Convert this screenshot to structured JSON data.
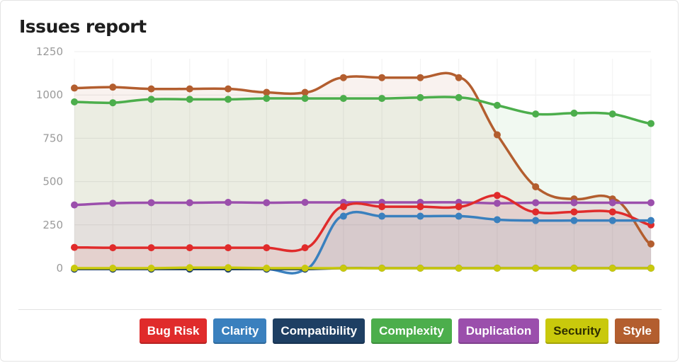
{
  "card": {
    "title": "Issues report"
  },
  "chart_data": {
    "type": "area",
    "title": "Issues report",
    "xlabel": "",
    "ylabel": "",
    "ylim": [
      0,
      1250
    ],
    "yticks": [
      "0",
      "250",
      "500",
      "750",
      "1000",
      "1250"
    ],
    "ytick_values": [
      0,
      250,
      500,
      750,
      1000,
      1250
    ],
    "grid": true,
    "legend_position": "bottom-right",
    "x": [
      1,
      2,
      3,
      4,
      5,
      6,
      7,
      8,
      9,
      10,
      11,
      12,
      13,
      14,
      15,
      16
    ],
    "series": [
      {
        "name": "Style",
        "color": "#b35e2f",
        "values": [
          1040,
          1045,
          1035,
          1035,
          1035,
          1015,
          1015,
          1100,
          1100,
          1100,
          1100,
          770,
          470,
          400,
          400,
          140
        ]
      },
      {
        "name": "Complexity",
        "color": "#4cae4c",
        "values": [
          960,
          955,
          975,
          975,
          975,
          980,
          980,
          980,
          980,
          985,
          985,
          940,
          890,
          895,
          890,
          835
        ]
      },
      {
        "name": "Duplication",
        "color": "#9b4fac",
        "values": [
          365,
          375,
          378,
          378,
          380,
          378,
          380,
          380,
          380,
          380,
          380,
          375,
          378,
          378,
          378,
          378
        ]
      },
      {
        "name": "Bug Risk",
        "color": "#e02b2b",
        "values": [
          120,
          118,
          118,
          118,
          118,
          118,
          118,
          355,
          355,
          355,
          355,
          420,
          325,
          325,
          325,
          250
        ]
      },
      {
        "name": "Clarity",
        "color": "#3a80be",
        "values": [
          -5,
          -5,
          -5,
          -5,
          -5,
          -5,
          -5,
          300,
          300,
          300,
          300,
          280,
          275,
          275,
          275,
          275
        ]
      },
      {
        "name": "Compatibility",
        "color": "#1e3f63",
        "values": [
          -5,
          -5,
          -5,
          -5,
          -5,
          -5,
          -5,
          0,
          0,
          0,
          0,
          0,
          0,
          0,
          0,
          0
        ]
      },
      {
        "name": "Security",
        "color": "#c9c90c",
        "values": [
          0,
          0,
          0,
          3,
          3,
          0,
          0,
          0,
          0,
          0,
          0,
          0,
          0,
          0,
          0,
          0
        ]
      }
    ]
  },
  "legend": [
    {
      "label": "Bug Risk",
      "color": "#e02b2b",
      "dark": false
    },
    {
      "label": "Clarity",
      "color": "#3a80be",
      "dark": false
    },
    {
      "label": "Compatibility",
      "color": "#1e3f63",
      "dark": false
    },
    {
      "label": "Complexity",
      "color": "#4cae4c",
      "dark": false
    },
    {
      "label": "Duplication",
      "color": "#9b4fac",
      "dark": false
    },
    {
      "label": "Security",
      "color": "#c9c90c",
      "dark": true
    },
    {
      "label": "Style",
      "color": "#b35e2f",
      "dark": false
    }
  ]
}
